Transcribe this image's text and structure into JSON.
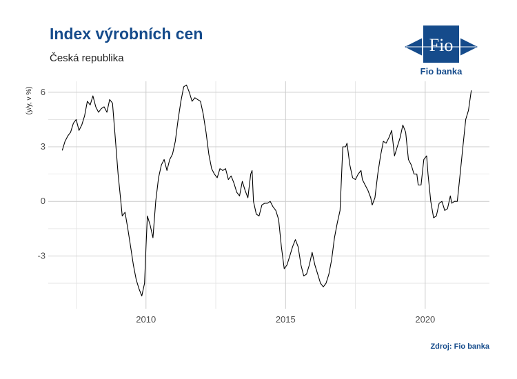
{
  "header": {
    "title": "Index výrobních cen",
    "subtitle": "Česká republika"
  },
  "logo": {
    "mark_text": "Fio",
    "name": "Fio banka",
    "color": "#154b8b"
  },
  "footer": {
    "source": "Zdroj: Fio banka"
  },
  "chart_data": {
    "type": "line",
    "title": "Index výrobních cen",
    "subtitle": "Česká republika",
    "ylabel": "(y/y, v %)",
    "xlabel": "",
    "xlim": [
      2006.5,
      2022.3
    ],
    "ylim": [
      -5.9,
      6.6
    ],
    "y_ticks": [
      -3,
      0,
      3,
      6
    ],
    "x_ticks": [
      2010,
      2015,
      2020
    ],
    "grid": true,
    "line_color": "#000000",
    "series": [
      {
        "values": [
          [
            2007.0,
            2.8
          ],
          [
            2007.1,
            3.3
          ],
          [
            2007.2,
            3.6
          ],
          [
            2007.3,
            3.8
          ],
          [
            2007.4,
            4.3
          ],
          [
            2007.5,
            4.5
          ],
          [
            2007.6,
            3.9
          ],
          [
            2007.7,
            4.2
          ],
          [
            2007.8,
            4.7
          ],
          [
            2007.9,
            5.5
          ],
          [
            2008.0,
            5.3
          ],
          [
            2008.1,
            5.8
          ],
          [
            2008.2,
            5.2
          ],
          [
            2008.3,
            4.9
          ],
          [
            2008.4,
            5.1
          ],
          [
            2008.5,
            5.2
          ],
          [
            2008.6,
            4.9
          ],
          [
            2008.7,
            5.6
          ],
          [
            2008.8,
            5.4
          ],
          [
            2008.9,
            3.5
          ],
          [
            2009.0,
            1.5
          ],
          [
            2009.1,
            0.0
          ],
          [
            2009.15,
            -0.8
          ],
          [
            2009.25,
            -0.6
          ],
          [
            2009.35,
            -1.5
          ],
          [
            2009.45,
            -2.5
          ],
          [
            2009.55,
            -3.5
          ],
          [
            2009.65,
            -4.3
          ],
          [
            2009.75,
            -4.8
          ],
          [
            2009.85,
            -5.2
          ],
          [
            2009.95,
            -4.5
          ],
          [
            2010.0,
            -2.5
          ],
          [
            2010.05,
            -0.8
          ],
          [
            2010.15,
            -1.3
          ],
          [
            2010.25,
            -2.0
          ],
          [
            2010.35,
            0.0
          ],
          [
            2010.45,
            1.3
          ],
          [
            2010.55,
            2.0
          ],
          [
            2010.65,
            2.3
          ],
          [
            2010.75,
            1.7
          ],
          [
            2010.85,
            2.3
          ],
          [
            2010.95,
            2.6
          ],
          [
            2011.05,
            3.3
          ],
          [
            2011.15,
            4.5
          ],
          [
            2011.25,
            5.5
          ],
          [
            2011.35,
            6.3
          ],
          [
            2011.45,
            6.4
          ],
          [
            2011.55,
            6.0
          ],
          [
            2011.65,
            5.5
          ],
          [
            2011.75,
            5.7
          ],
          [
            2011.85,
            5.6
          ],
          [
            2011.95,
            5.5
          ],
          [
            2012.05,
            4.8
          ],
          [
            2012.15,
            3.8
          ],
          [
            2012.25,
            2.6
          ],
          [
            2012.35,
            1.8
          ],
          [
            2012.45,
            1.5
          ],
          [
            2012.55,
            1.3
          ],
          [
            2012.65,
            1.8
          ],
          [
            2012.75,
            1.7
          ],
          [
            2012.85,
            1.8
          ],
          [
            2012.95,
            1.2
          ],
          [
            2013.05,
            1.4
          ],
          [
            2013.15,
            1.0
          ],
          [
            2013.25,
            0.5
          ],
          [
            2013.35,
            0.3
          ],
          [
            2013.45,
            1.1
          ],
          [
            2013.55,
            0.6
          ],
          [
            2013.65,
            0.2
          ],
          [
            2013.75,
            1.5
          ],
          [
            2013.8,
            1.7
          ],
          [
            2013.85,
            0.0
          ],
          [
            2013.95,
            -0.7
          ],
          [
            2014.05,
            -0.8
          ],
          [
            2014.15,
            -0.2
          ],
          [
            2014.25,
            -0.1
          ],
          [
            2014.35,
            -0.1
          ],
          [
            2014.45,
            0.0
          ],
          [
            2014.55,
            -0.3
          ],
          [
            2014.65,
            -0.5
          ],
          [
            2014.75,
            -1.0
          ],
          [
            2014.85,
            -2.5
          ],
          [
            2014.95,
            -3.7
          ],
          [
            2015.05,
            -3.5
          ],
          [
            2015.15,
            -3.0
          ],
          [
            2015.25,
            -2.5
          ],
          [
            2015.35,
            -2.1
          ],
          [
            2015.45,
            -2.5
          ],
          [
            2015.55,
            -3.5
          ],
          [
            2015.65,
            -4.1
          ],
          [
            2015.75,
            -4.0
          ],
          [
            2015.85,
            -3.5
          ],
          [
            2015.95,
            -2.8
          ],
          [
            2016.05,
            -3.5
          ],
          [
            2016.15,
            -4.0
          ],
          [
            2016.25,
            -4.5
          ],
          [
            2016.35,
            -4.7
          ],
          [
            2016.45,
            -4.5
          ],
          [
            2016.55,
            -4.0
          ],
          [
            2016.65,
            -3.2
          ],
          [
            2016.75,
            -2.0
          ],
          [
            2016.85,
            -1.2
          ],
          [
            2016.95,
            -0.5
          ],
          [
            2017.05,
            3.0
          ],
          [
            2017.15,
            3.0
          ],
          [
            2017.2,
            3.2
          ],
          [
            2017.3,
            2.0
          ],
          [
            2017.4,
            1.3
          ],
          [
            2017.5,
            1.2
          ],
          [
            2017.6,
            1.5
          ],
          [
            2017.7,
            1.7
          ],
          [
            2017.75,
            1.2
          ],
          [
            2017.85,
            0.9
          ],
          [
            2017.95,
            0.6
          ],
          [
            2018.05,
            0.2
          ],
          [
            2018.1,
            -0.2
          ],
          [
            2018.2,
            0.2
          ],
          [
            2018.3,
            1.5
          ],
          [
            2018.4,
            2.5
          ],
          [
            2018.5,
            3.3
          ],
          [
            2018.6,
            3.2
          ],
          [
            2018.7,
            3.5
          ],
          [
            2018.8,
            3.9
          ],
          [
            2018.9,
            2.5
          ],
          [
            2019.0,
            3.0
          ],
          [
            2019.1,
            3.5
          ],
          [
            2019.2,
            4.2
          ],
          [
            2019.3,
            3.8
          ],
          [
            2019.4,
            2.3
          ],
          [
            2019.5,
            2.0
          ],
          [
            2019.6,
            1.5
          ],
          [
            2019.7,
            1.5
          ],
          [
            2019.75,
            0.9
          ],
          [
            2019.85,
            0.9
          ],
          [
            2019.95,
            2.3
          ],
          [
            2020.05,
            2.5
          ],
          [
            2020.1,
            1.5
          ],
          [
            2020.2,
            0.0
          ],
          [
            2020.3,
            -0.9
          ],
          [
            2020.4,
            -0.8
          ],
          [
            2020.5,
            -0.1
          ],
          [
            2020.6,
            0.0
          ],
          [
            2020.7,
            -0.5
          ],
          [
            2020.8,
            -0.4
          ],
          [
            2020.9,
            0.3
          ],
          [
            2020.95,
            -0.1
          ],
          [
            2021.05,
            0.0
          ],
          [
            2021.15,
            0.0
          ],
          [
            2021.25,
            1.5
          ],
          [
            2021.35,
            3.0
          ],
          [
            2021.45,
            4.5
          ],
          [
            2021.55,
            5.0
          ],
          [
            2021.65,
            6.1
          ]
        ]
      }
    ]
  }
}
